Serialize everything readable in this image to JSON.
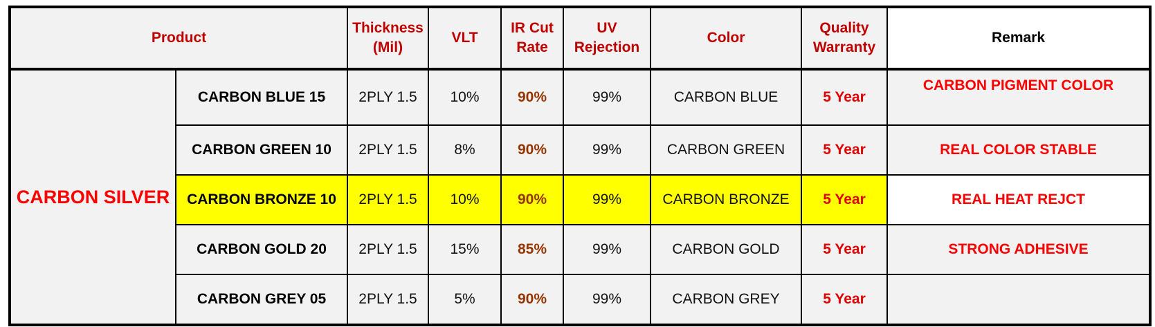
{
  "headers": {
    "product": "Product",
    "thickness": "Thickness (Mil)",
    "vlt": "VLT",
    "ir_cut": "IR Cut Rate",
    "uv": "UV Rejection",
    "color": "Color",
    "warranty": "Quality Warranty",
    "remark": "Remark"
  },
  "group": "CARBON SILVER",
  "rows": [
    {
      "name": "CARBON BLUE 15",
      "thickness": "2PLY 1.5",
      "vlt": "10%",
      "ir": "90%",
      "uv": "99%",
      "color": "CARBON BLUE",
      "warranty": "5 Year",
      "remark": "CARBON PIGMENT COLOR",
      "highlight": false
    },
    {
      "name": "CARBON GREEN 10",
      "thickness": "2PLY 1.5",
      "vlt": "8%",
      "ir": "90%",
      "uv": "99%",
      "color": "CARBON GREEN",
      "warranty": "5 Year",
      "remark": "REAL COLOR STABLE",
      "highlight": false
    },
    {
      "name": "CARBON BRONZE 10",
      "thickness": "2PLY 1.5",
      "vlt": "10%",
      "ir": "90%",
      "uv": "99%",
      "color": "CARBON BRONZE",
      "warranty": "5 Year",
      "remark": "REAL HEAT REJCT",
      "highlight": true
    },
    {
      "name": "CARBON GOLD 20",
      "thickness": "2PLY 1.5",
      "vlt": "15%",
      "ir": "85%",
      "uv": "99%",
      "color": "CARBON GOLD",
      "warranty": "5 Year",
      "remark": "STRONG ADHESIVE",
      "highlight": false
    },
    {
      "name": "CARBON GREY 05",
      "thickness": "2PLY 1.5",
      "vlt": "5%",
      "ir": "90%",
      "uv": "99%",
      "color": "CARBON GREY",
      "warranty": "5 Year",
      "remark": "",
      "highlight": false
    }
  ],
  "colors": {
    "header_text": "#c00000",
    "group_text": "#ff0000",
    "ir_text": "#953500",
    "highlight": "#ffff00",
    "cell_bg": "#f2f2f2"
  }
}
